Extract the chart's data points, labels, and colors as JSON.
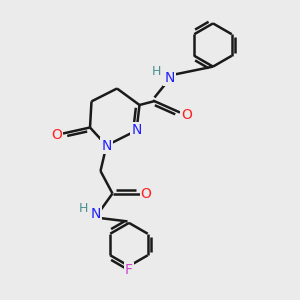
{
  "bg_color": "#ebebeb",
  "bond_color": "#1a1a1a",
  "bond_width": 1.8,
  "atom_colors": {
    "N": "#2020ff",
    "O": "#ff2020",
    "F": "#cc44cc",
    "H": "#4a9090"
  },
  "font_size": 10,
  "fig_width": 3.0,
  "fig_height": 3.0
}
